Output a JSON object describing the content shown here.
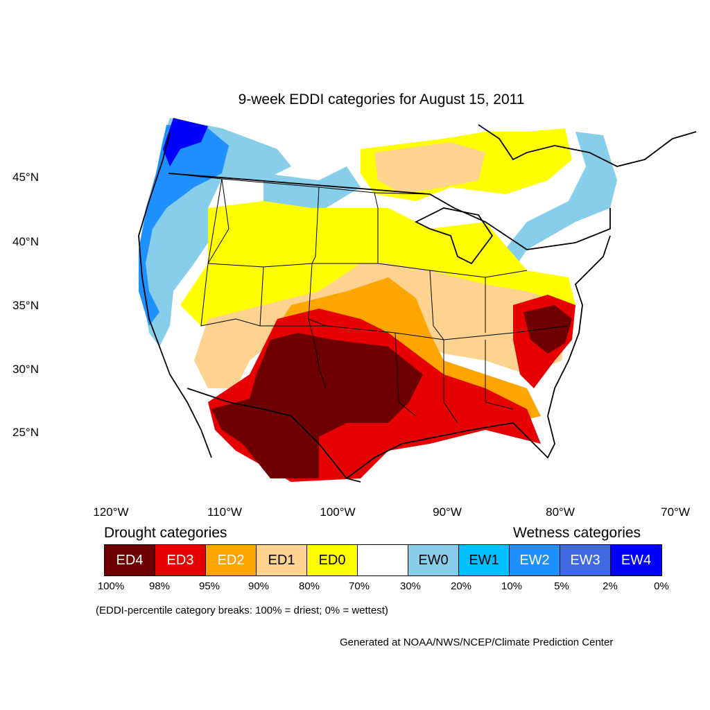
{
  "title": "9-week EDDI categories for August 15, 2011",
  "axes": {
    "lat_labels": [
      "45°N",
      "40°N",
      "35°N",
      "30°N",
      "25°N"
    ],
    "lon_labels": [
      "120°W",
      "110°W",
      "100°W",
      "90°W",
      "80°W",
      "70°W"
    ]
  },
  "legend": {
    "drought_heading": "Drought categories",
    "wetness_heading": "Wetness categories",
    "categories": [
      {
        "label": "ED4",
        "color": "#6e0000",
        "text_color": "#ffffff"
      },
      {
        "label": "ED3",
        "color": "#e60000",
        "text_color": "#ffffff"
      },
      {
        "label": "ED2",
        "color": "#ffa500",
        "text_color": "#ffffff"
      },
      {
        "label": "ED1",
        "color": "#fed38f",
        "text_color": "#000000"
      },
      {
        "label": "ED0",
        "color": "#ffff00",
        "text_color": "#000000"
      },
      {
        "label": "",
        "color": "#ffffff",
        "text_color": "#000000"
      },
      {
        "label": "EW0",
        "color": "#87ceeb",
        "text_color": "#000000"
      },
      {
        "label": "EW1",
        "color": "#00bfff",
        "text_color": "#000000"
      },
      {
        "label": "EW2",
        "color": "#1e90ff",
        "text_color": "#ffffff"
      },
      {
        "label": "EW3",
        "color": "#4169e1",
        "text_color": "#ffffff"
      },
      {
        "label": "EW4",
        "color": "#0000ff",
        "text_color": "#ffffff"
      }
    ],
    "percentiles": [
      "100%",
      "98%",
      "95%",
      "90%",
      "80%",
      "70%",
      "30%",
      "20%",
      "10%",
      "5%",
      "2%",
      "0%"
    ]
  },
  "note": "(EDDI-percentile category breaks: 100% = driest; 0% = wettest)",
  "credit": "Generated at NOAA/NWS/NCEP/Climate Prediction Center"
}
